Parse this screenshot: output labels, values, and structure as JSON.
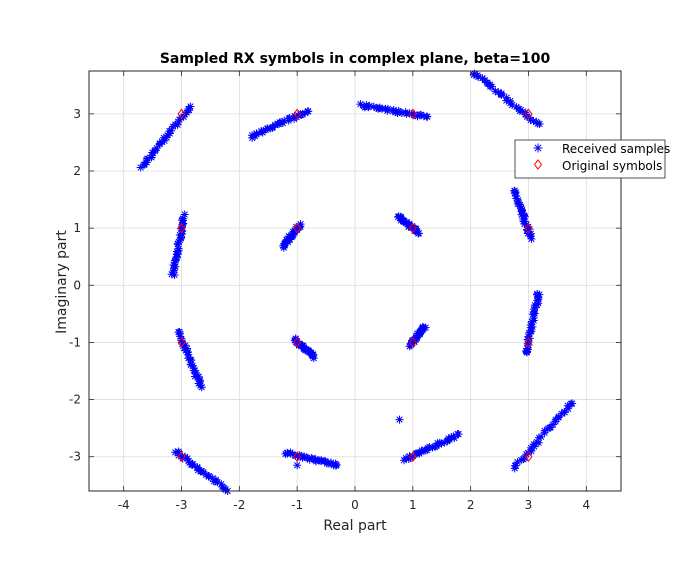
{
  "chart_data": {
    "type": "scatter",
    "title": "Sampled RX symbols in complex plane, beta=100",
    "xlabel": "Real part",
    "ylabel": "Imaginary part",
    "xlim": [
      -4.6,
      4.6
    ],
    "ylim": [
      -3.6,
      3.75
    ],
    "xticks": [
      -4,
      -3,
      -2,
      -1,
      0,
      1,
      2,
      3,
      4
    ],
    "yticks": [
      -3,
      -2,
      -1,
      0,
      1,
      2,
      3
    ],
    "grid": true,
    "legend": {
      "placement": "top-right",
      "entries": [
        "Received samples",
        "Original symbols"
      ]
    },
    "colors": {
      "received": "#0000ff",
      "original": "#ff0000",
      "grid": "#dcdcdc",
      "axes": "#262626"
    },
    "series": [
      {
        "name": "Original symbols",
        "marker": "diamond",
        "points": [
          [
            -3,
            3
          ],
          [
            -1,
            3
          ],
          [
            1,
            3
          ],
          [
            3,
            3
          ],
          [
            -3,
            1
          ],
          [
            -1,
            1
          ],
          [
            1,
            1
          ],
          [
            3,
            1
          ],
          [
            -3,
            -1
          ],
          [
            -1,
            -1
          ],
          [
            1,
            -1
          ],
          [
            3,
            -1
          ],
          [
            -3,
            -3
          ],
          [
            -1,
            -3
          ],
          [
            1,
            -3
          ],
          [
            3,
            -3
          ]
        ]
      },
      {
        "name": "Received samples",
        "marker": "asterisk",
        "clusters": [
          {
            "center": [
              -3,
              3
            ],
            "from": [
              -3.7,
              2.05
            ],
            "to": [
              -2.85,
              3.12
            ]
          },
          {
            "center": [
              -1,
              3
            ],
            "from": [
              -1.8,
              2.6
            ],
            "to": [
              -0.8,
              3.05
            ]
          },
          {
            "center": [
              1,
              3
            ],
            "from": [
              0.1,
              3.15
            ],
            "to": [
              1.25,
              2.95
            ]
          },
          {
            "center": [
              3,
              3
            ],
            "from": [
              2.05,
              3.72
            ],
            "to": [
              3.2,
              2.8
            ]
          },
          {
            "center": [
              -3,
              1
            ],
            "from": [
              -3.15,
              0.2
            ],
            "to": [
              -2.95,
              1.22
            ]
          },
          {
            "center": [
              -1,
              1
            ],
            "from": [
              -1.25,
              0.68
            ],
            "to": [
              -0.95,
              1.05
            ]
          },
          {
            "center": [
              1,
              1
            ],
            "from": [
              0.75,
              1.2
            ],
            "to": [
              1.1,
              0.92
            ]
          },
          {
            "center": [
              3,
              1
            ],
            "from": [
              2.75,
              1.68
            ],
            "to": [
              3.05,
              0.82
            ]
          },
          {
            "center": [
              -3,
              -1
            ],
            "from": [
              -3.05,
              -0.82
            ],
            "to": [
              -2.65,
              -1.8
            ]
          },
          {
            "center": [
              -1,
              -1
            ],
            "from": [
              -1.05,
              -0.95
            ],
            "to": [
              -0.7,
              -1.25
            ]
          },
          {
            "center": [
              1,
              -1
            ],
            "from": [
              0.95,
              -1.05
            ],
            "to": [
              1.2,
              -0.72
            ]
          },
          {
            "center": [
              3,
              -1
            ],
            "from": [
              2.95,
              -1.2
            ],
            "to": [
              3.18,
              -0.15
            ]
          },
          {
            "center": [
              -3,
              -3
            ],
            "from": [
              -3.1,
              -2.9
            ],
            "to": [
              -2.2,
              -3.6
            ]
          },
          {
            "center": [
              -1,
              -3
            ],
            "from": [
              -1.2,
              -2.93
            ],
            "to": [
              -0.3,
              -3.15
            ]
          },
          {
            "center": [
              1,
              -3
            ],
            "from": [
              0.85,
              -3.05
            ],
            "to": [
              1.8,
              -2.62
            ]
          },
          {
            "center": [
              3,
              -3
            ],
            "from": [
              2.75,
              -3.2
            ],
            "to": [
              3.75,
              -2.05
            ]
          }
        ],
        "outliers": [
          [
            -1,
            -3.15
          ],
          [
            0.77,
            -2.35
          ],
          [
            3.15,
            -0.15
          ],
          [
            -3.12,
            0.18
          ]
        ]
      }
    ]
  }
}
